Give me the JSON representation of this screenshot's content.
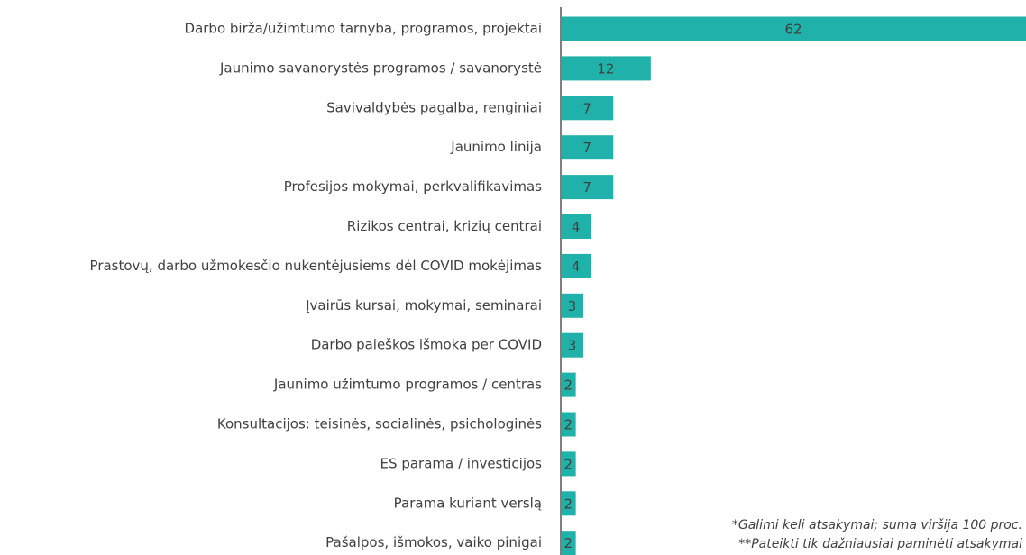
{
  "chart_data": {
    "type": "bar",
    "orientation": "horizontal",
    "categories": [
      "Darbo birža/užimtumo tarnyba, programos, projektai",
      "Jaunimo savanorystės programos / savanorystė",
      "Savivaldybės pagalba, renginiai",
      "Jaunimo linija",
      "Profesijos mokymai, perkvalifikavimas",
      "Rizikos centrai, krizių centrai",
      "Prastovų, darbo užmokesčio nukentėjusiems dėl COVID mokėjimas",
      "Įvairūs kursai, mokymai, seminarai",
      "Darbo paieškos išmoka per COVID",
      "Jaunimo užimtumo programos / centras",
      "Konsultacijos: teisinės, socialinės, psichologinės",
      "ES parama / investicijos",
      "Parama kuriant verslą",
      "Pašalpos, išmokos, vaiko pinigai"
    ],
    "values": [
      62,
      12,
      7,
      7,
      7,
      4,
      4,
      3,
      3,
      2,
      2,
      2,
      2,
      2
    ],
    "color": "#20b2aa",
    "xlim": [
      0,
      62
    ],
    "annotations": [
      "*Galimi keli atsakymai; suma viršija 100 proc.",
      "**Pateikti tik dažniausiai paminėti atsakymai"
    ]
  }
}
